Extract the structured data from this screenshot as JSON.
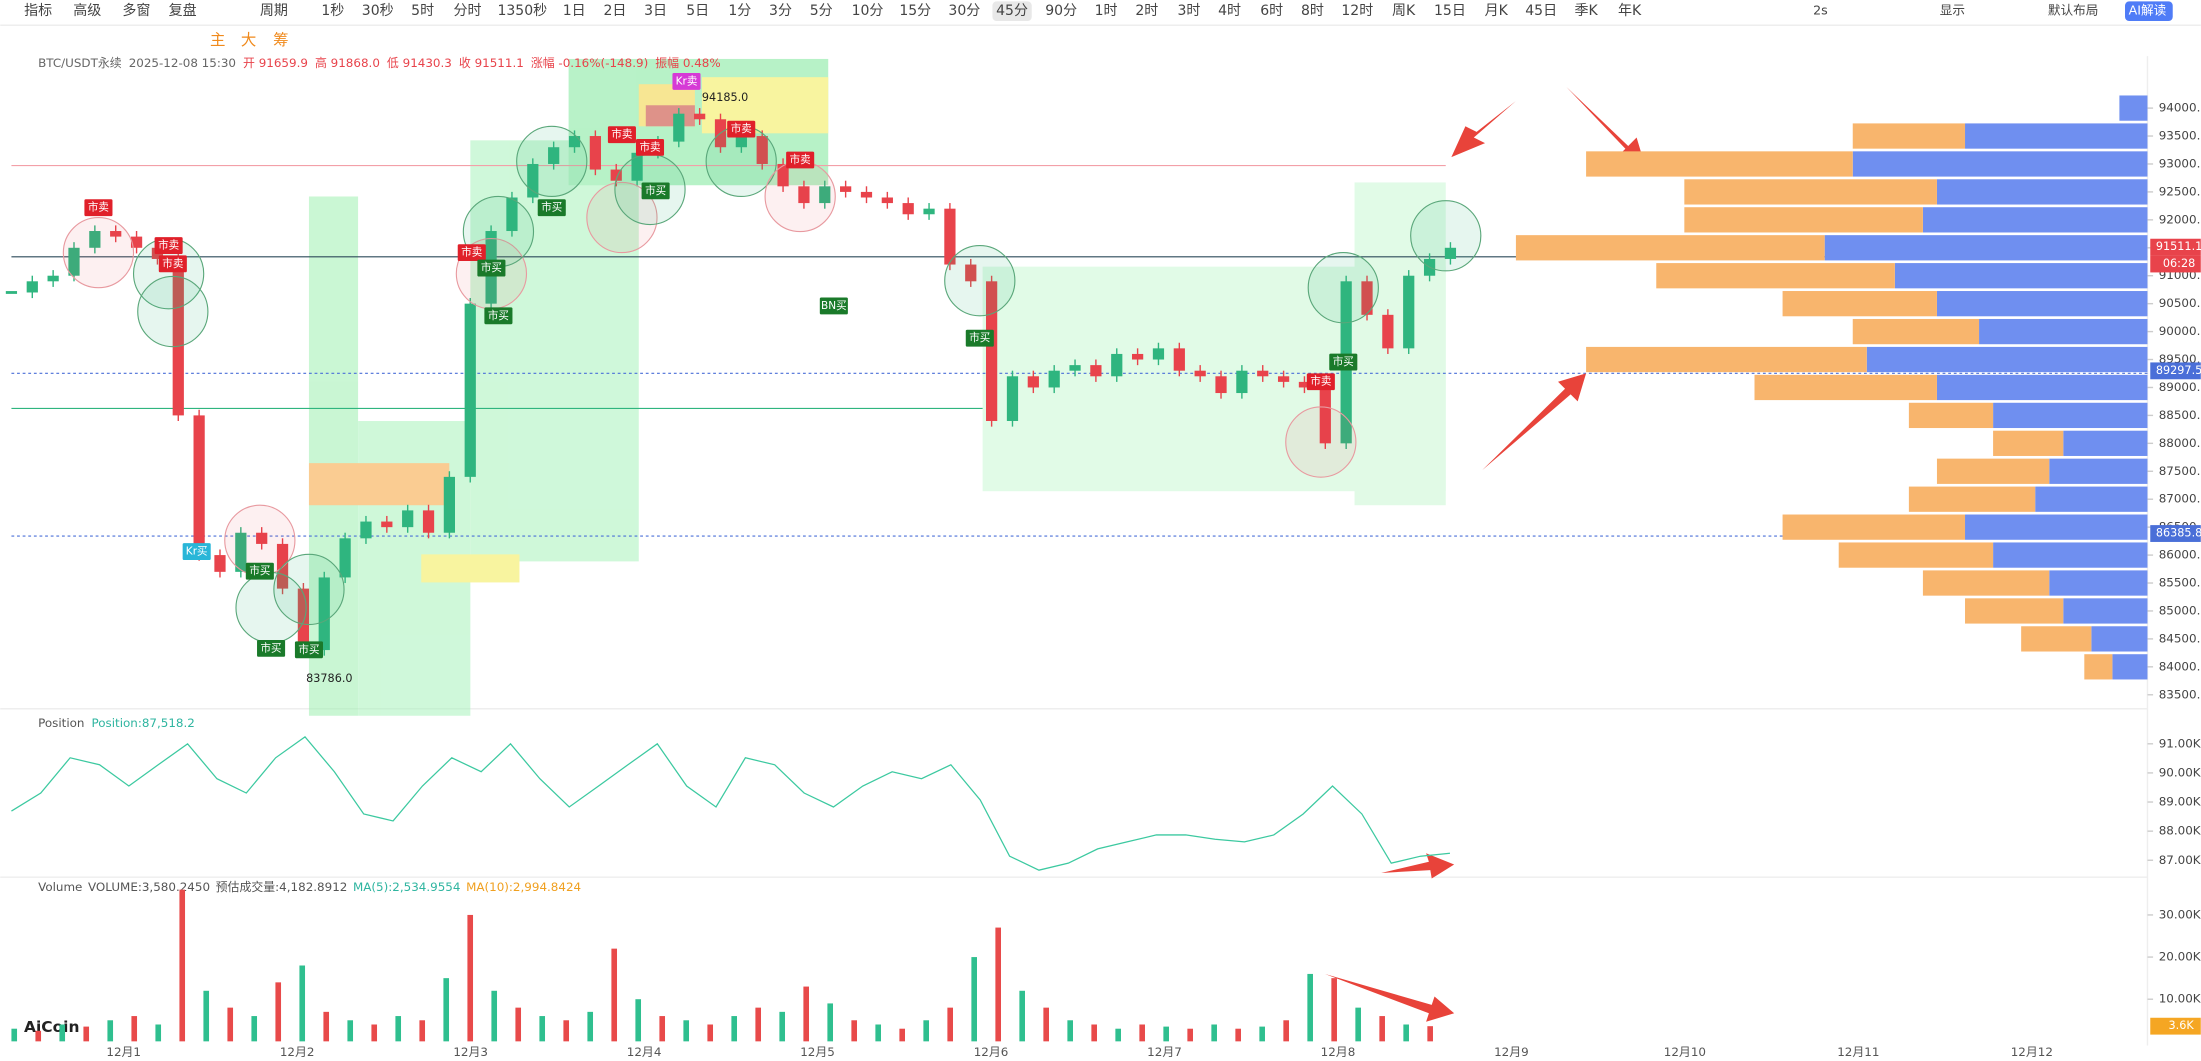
{
  "toolbar": {
    "items": [
      "指标",
      "高级",
      "多窗",
      "复盘",
      "周期",
      "1秒",
      "30秒",
      "5时",
      "分时",
      "1350秒",
      "1日",
      "2日",
      "3日",
      "5日",
      "1分",
      "3分",
      "5分",
      "10分",
      "15分",
      "30分",
      "45分",
      "90分",
      "1时",
      "2时",
      "3时",
      "4时",
      "6时",
      "8时",
      "12时",
      "周K",
      "15日",
      "月K",
      "45日",
      "季K",
      "年K"
    ],
    "right_items": [
      "2s",
      "显示",
      "默认布局",
      "AI解读"
    ],
    "tools": [
      "主",
      "大",
      "筹"
    ],
    "logo": "AiCoin"
  },
  "chart_data": [
    {
      "type": "candlestick",
      "header": [
        "BTC/USDT永续",
        "2025-12-08 15:30",
        "开 91659.9",
        "高 91868.0",
        "低 91430.3",
        "收 91511.1",
        "涨幅 -0.16%(-148.9)",
        "振幅 0.48%"
      ],
      "close": [
        90700,
        90900,
        91000,
        91500,
        91800,
        91700,
        91500,
        91300,
        88500,
        86000,
        85700,
        86400,
        86200,
        85400,
        84300,
        85600,
        86300,
        86600,
        86500,
        86800,
        86400,
        87400,
        90500,
        91800,
        92400,
        93000,
        93300,
        93500,
        92900,
        92700,
        93200,
        93400,
        93900,
        93800,
        93300,
        93500,
        93000,
        92600,
        92300,
        92600,
        92500,
        92400,
        92300,
        92100,
        92200,
        91200,
        90900,
        88400,
        89200,
        89000,
        89300,
        89400,
        89200,
        89600,
        89500,
        89700,
        89300,
        89200,
        88900,
        89300,
        89200,
        89100,
        89000,
        88000,
        90900,
        90300,
        89700,
        91000,
        91300,
        91500
      ],
      "colors": [
        "#2fb57f",
        "#e8434b"
      ],
      "ylim": [
        83250,
        94930
      ],
      "yticks": [
        {
          "value": 83500,
          "label": "83500.0"
        },
        {
          "value": 84000,
          "label": "84000.0"
        },
        {
          "value": 84500,
          "label": "84500.0"
        },
        {
          "value": 85000,
          "label": "85000.0"
        },
        {
          "value": 85500,
          "label": "85500.0"
        },
        {
          "value": 86000,
          "label": "86000.0"
        },
        {
          "value": 86500,
          "label": "86500.0"
        },
        {
          "value": 87000,
          "label": "87000.0"
        },
        {
          "value": 87500,
          "label": "87500.0"
        },
        {
          "value": 88000,
          "label": "88000.0"
        },
        {
          "value": 88500,
          "label": "88500.0"
        },
        {
          "value": 89000,
          "label": "89000.0"
        },
        {
          "value": 89500,
          "label": "89500.0"
        },
        {
          "value": 90000,
          "label": "90000.0"
        },
        {
          "value": 90500,
          "label": "90500.0"
        },
        {
          "value": 91000,
          "label": "91000.0"
        },
        {
          "value": 91500,
          "label": "91500.0"
        },
        {
          "value": 92000,
          "label": "92000.0"
        },
        {
          "value": 92500,
          "label": "92500.0"
        },
        {
          "value": 93000,
          "label": "93000.0"
        },
        {
          "value": 93500,
          "label": "93500.0"
        },
        {
          "value": 94000,
          "label": "94000.0"
        }
      ],
      "price_tags": [
        91511.1,
        89297.5,
        86385.8
      ],
      "tag_colors": [
        "#e8434b",
        "#4a6fd8",
        "#4a6fd8"
      ],
      "countdown": "06:28",
      "high_label": {
        "value": 94185,
        "label": "94185.0"
      },
      "low_label": {
        "value": 83786,
        "label": "83786.0"
      },
      "annotations": [
        "市卖",
        "市卖",
        "市卖",
        "Kr买",
        "市买",
        "市买",
        "市买",
        "市卖",
        "市买",
        "市买",
        "市买",
        "市卖",
        "市卖",
        "市买",
        "Kr卖",
        "市卖",
        "市卖",
        "BN买",
        "市买",
        "市买",
        "市卖"
      ],
      "dates": [
        "12月1",
        "12月2",
        "12月3",
        "12月4",
        "12月5",
        "12月6",
        "12月7",
        "12月8",
        "12月9",
        "12月10",
        "12月11",
        "12月12"
      ],
      "profile": {
        "prices": [
          84000,
          84500,
          85000,
          85500,
          86000,
          86500,
          87000,
          87500,
          88000,
          88500,
          89000,
          89500,
          90000,
          90500,
          91000,
          91500,
          92000,
          92500,
          93000,
          93500,
          94000
        ],
        "buy": [
          25,
          40,
          60,
          70,
          110,
          130,
          80,
          70,
          60,
          110,
          150,
          200,
          120,
          150,
          180,
          230,
          160,
          150,
          210,
          130,
          20
        ],
        "sell": [
          20,
          50,
          70,
          90,
          110,
          130,
          90,
          80,
          50,
          60,
          130,
          200,
          90,
          110,
          170,
          220,
          170,
          180,
          190,
          80,
          0
        ],
        "colors": [
          "#6f8ff0",
          "#f8b56d"
        ]
      }
    },
    {
      "type": "line",
      "title": "Position",
      "value_label": "Position:87,518.2",
      "color": "#3cc9a0",
      "values": [
        88690,
        89310,
        90520,
        90280,
        89550,
        90280,
        91000,
        89800,
        89310,
        90520,
        91240,
        90040,
        88590,
        88350,
        89550,
        90520,
        90040,
        91000,
        89800,
        88830,
        89550,
        90280,
        91000,
        89550,
        88830,
        90520,
        90280,
        89310,
        88830,
        89550,
        90040,
        89800,
        90280,
        89070,
        87140,
        86660,
        86900,
        87390,
        87630,
        87870,
        87870,
        87720,
        87630,
        87870,
        88590,
        89550,
        88590,
        86900,
        87140,
        87240
      ],
      "ylim": [
        86420,
        92060
      ],
      "yticks": [
        {
          "value": 91000,
          "label": "91.00K"
        },
        {
          "value": 90000,
          "label": "90.00K"
        },
        {
          "value": 89000,
          "label": "89.00K"
        },
        {
          "value": 88000,
          "label": "88.00K"
        },
        {
          "value": 87000,
          "label": "87.00K"
        }
      ]
    },
    {
      "type": "bar",
      "title": "Volume",
      "legend": [
        "VOLUME:3,580.2450",
        "预估成交量:4,182.8912",
        "MA(5):2,534.9554",
        "MA(10):2,994.8424"
      ],
      "values": [
        3000,
        2500,
        4000,
        3500,
        5000,
        6000,
        4000,
        36000,
        12000,
        8000,
        6000,
        14000,
        18000,
        7000,
        5000,
        4000,
        6000,
        5000,
        15000,
        30000,
        12000,
        8000,
        6000,
        5000,
        7000,
        22000,
        10000,
        6000,
        5000,
        4000,
        6000,
        8000,
        7000,
        13000,
        9000,
        5000,
        4000,
        3000,
        5000,
        8000,
        20000,
        27000,
        12000,
        8000,
        5000,
        4000,
        3000,
        4000,
        3500,
        3000,
        4000,
        3000,
        3500,
        5000,
        16000,
        15000,
        8000,
        6000,
        4000,
        3600
      ],
      "colors": [
        "#2fbf8f",
        "#e84a4a"
      ],
      "ylim": [
        0,
        38300
      ],
      "yticks": [
        {
          "value": 30000,
          "label": "30.00K"
        },
        {
          "value": 20000,
          "label": "20.00K"
        },
        {
          "value": 10000,
          "label": "10.00K"
        }
      ],
      "last_tag": {
        "value": 3600,
        "label": "3.6K"
      }
    }
  ]
}
